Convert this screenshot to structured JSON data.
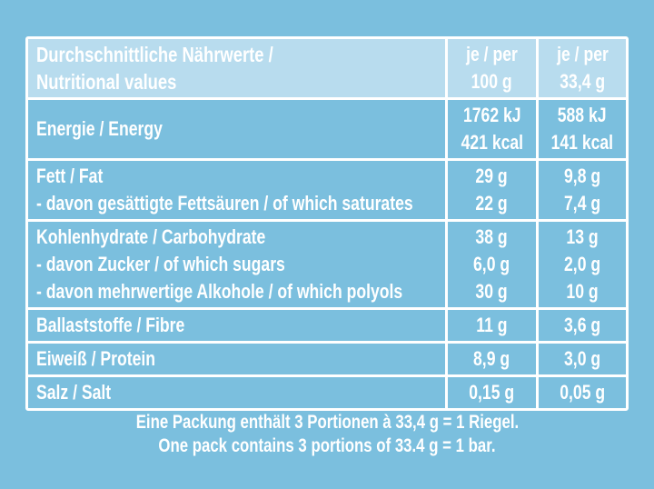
{
  "colors": {
    "background": "#7BBFDE",
    "header_background": "#B8DCEE",
    "grid": "#FFFFFF",
    "text": "#FFFFFF"
  },
  "table": {
    "header": {
      "title_lines": [
        "Durchschnittliche Nährwerte /",
        "Nutritional values"
      ],
      "col_per_100g_lines": [
        "je / per",
        "100 g"
      ],
      "col_per_portion_lines": [
        "je / per",
        "33,4 g"
      ]
    },
    "rows": [
      {
        "labels": [
          "Energie / Energy"
        ],
        "per_100g": [
          "1762 kJ",
          "421 kcal"
        ],
        "per_33_4g": [
          "588 kJ",
          "141 kcal"
        ]
      },
      {
        "labels": [
          "Fett / Fat",
          "- davon gesättigte Fettsäuren / of which saturates"
        ],
        "per_100g": [
          "29 g",
          "22 g"
        ],
        "per_33_4g": [
          "9,8 g",
          "7,4 g"
        ]
      },
      {
        "labels": [
          "Kohlenhydrate / Carbohydrate",
          "- davon Zucker / of which sugars",
          "- davon mehrwertige Alkohole / of which polyols"
        ],
        "per_100g": [
          "38 g",
          "6,0 g",
          "30 g"
        ],
        "per_33_4g": [
          "13 g",
          "2,0 g",
          "10 g"
        ]
      },
      {
        "labels": [
          "Ballaststoffe / Fibre"
        ],
        "per_100g": [
          "11 g"
        ],
        "per_33_4g": [
          "3,6 g"
        ]
      },
      {
        "labels": [
          "Eiweiß / Protein"
        ],
        "per_100g": [
          "8,9 g"
        ],
        "per_33_4g": [
          "3,0 g"
        ]
      },
      {
        "labels": [
          "Salz / Salt"
        ],
        "per_100g": [
          "0,15 g"
        ],
        "per_33_4g": [
          "0,05 g"
        ]
      }
    ]
  },
  "footer": {
    "line_de": "Eine Packung enthält 3 Portionen à 33,4 g = 1 Riegel.",
    "line_en": "One pack contains 3 portions of 33.4 g = 1 bar."
  }
}
